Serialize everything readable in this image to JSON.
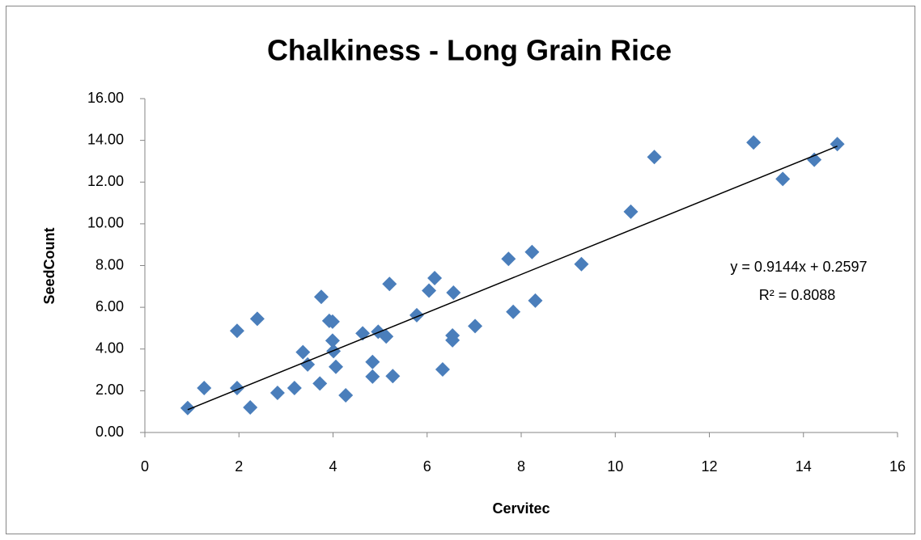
{
  "chart_data": {
    "type": "scatter",
    "title": "Chalkiness - Long Grain Rice",
    "x_label": "Cervitec",
    "y_label": "SeedCount",
    "color": "#4a7ebb",
    "x": [
      0.91,
      1.26,
      1.96,
      1.96,
      2.24,
      2.39,
      2.82,
      3.18,
      3.36,
      3.46,
      3.72,
      3.75,
      3.92,
      3.99,
      3.99,
      4.01,
      4.06,
      4.27,
      4.63,
      4.84,
      4.84,
      4.96,
      5.13,
      5.2,
      5.27,
      5.78,
      6.04,
      6.16,
      6.33,
      6.54,
      6.54,
      6.56,
      7.02,
      7.73,
      7.83,
      8.23,
      8.3,
      9.28,
      10.33,
      10.83,
      12.94,
      13.56,
      14.23,
      14.72
    ],
    "values": [
      1.17,
      2.13,
      4.87,
      2.13,
      1.2,
      5.45,
      1.9,
      2.13,
      3.85,
      3.26,
      2.35,
      6.5,
      5.35,
      5.31,
      4.4,
      3.9,
      3.15,
      1.78,
      4.75,
      3.38,
      2.68,
      4.83,
      4.6,
      7.12,
      2.7,
      5.62,
      6.8,
      7.4,
      3.02,
      4.65,
      4.42,
      6.7,
      5.1,
      8.32,
      5.78,
      8.65,
      6.32,
      8.07,
      10.58,
      13.2,
      13.9,
      12.15,
      13.07,
      13.82
    ],
    "xlim": [
      0,
      16
    ],
    "xticks": [
      0,
      2,
      4,
      6,
      8,
      10,
      12,
      14,
      16
    ],
    "ylim": [
      0,
      16
    ],
    "yticks": [
      {
        "value": 0,
        "label": "0.00"
      },
      {
        "value": 2,
        "label": "2.00"
      },
      {
        "value": 4,
        "label": "4.00"
      },
      {
        "value": 6,
        "label": "6.00"
      },
      {
        "value": 8,
        "label": "8.00"
      },
      {
        "value": 10,
        "label": "10.00"
      },
      {
        "value": 12,
        "label": "12.00"
      },
      {
        "value": 14,
        "label": "14.00"
      },
      {
        "value": 16,
        "label": "16.00"
      }
    ],
    "grid": false,
    "trendline": {
      "slope": 0.9144,
      "intercept": 0.2597,
      "color": "#000000",
      "equation": "y = 0.9144x + 0.2597",
      "r_squared": "R² = 0.8088"
    }
  }
}
